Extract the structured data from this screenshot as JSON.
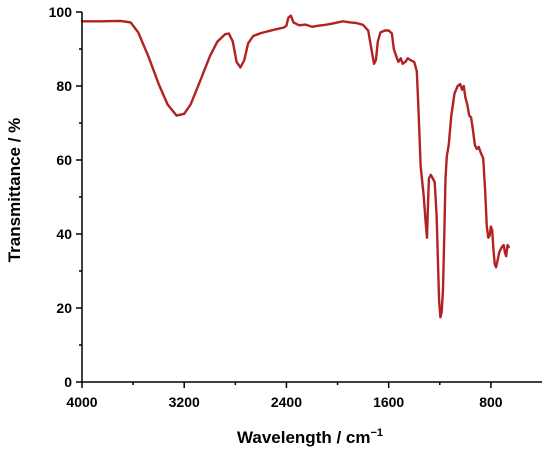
{
  "chart_data": {
    "type": "line",
    "title": "",
    "xlabel": "Wavelength / cm",
    "xlabel_superscript": "−1",
    "ylabel": "Transmittance / %",
    "xlim": [
      4000,
      400
    ],
    "ylim": [
      0,
      100
    ],
    "x_reversed": true,
    "x_ticks": [
      4000,
      3200,
      2400,
      1600,
      800
    ],
    "y_ticks": [
      0,
      20,
      40,
      60,
      80,
      100
    ],
    "grid": false,
    "legend": "none",
    "series": [
      {
        "color": "#b22222",
        "points": [
          [
            4000,
            97.5
          ],
          [
            3850,
            97.5
          ],
          [
            3700,
            97.6
          ],
          [
            3620,
            97.2
          ],
          [
            3560,
            94.5
          ],
          [
            3480,
            88.0
          ],
          [
            3400,
            80.5
          ],
          [
            3330,
            75.0
          ],
          [
            3260,
            72.0
          ],
          [
            3200,
            72.5
          ],
          [
            3150,
            75.0
          ],
          [
            3080,
            81.0
          ],
          [
            3000,
            88.0
          ],
          [
            2940,
            92.0
          ],
          [
            2880,
            94.0
          ],
          [
            2850,
            94.2
          ],
          [
            2820,
            92.0
          ],
          [
            2790,
            86.5
          ],
          [
            2760,
            85.0
          ],
          [
            2730,
            87.0
          ],
          [
            2700,
            91.5
          ],
          [
            2660,
            93.5
          ],
          [
            2600,
            94.3
          ],
          [
            2500,
            95.2
          ],
          [
            2420,
            95.8
          ],
          [
            2400,
            96.3
          ],
          [
            2385,
            98.5
          ],
          [
            2365,
            99.0
          ],
          [
            2345,
            97.2
          ],
          [
            2300,
            96.4
          ],
          [
            2250,
            96.6
          ],
          [
            2200,
            96.0
          ],
          [
            2150,
            96.3
          ],
          [
            2100,
            96.5
          ],
          [
            2050,
            96.8
          ],
          [
            2000,
            97.2
          ],
          [
            1960,
            97.5
          ],
          [
            1900,
            97.2
          ],
          [
            1850,
            97.0
          ],
          [
            1800,
            96.5
          ],
          [
            1760,
            95.0
          ],
          [
            1735,
            90.0
          ],
          [
            1715,
            86.0
          ],
          [
            1700,
            87.0
          ],
          [
            1685,
            92.0
          ],
          [
            1665,
            94.5
          ],
          [
            1630,
            95.0
          ],
          [
            1600,
            95.0
          ],
          [
            1575,
            94.2
          ],
          [
            1560,
            90.0
          ],
          [
            1540,
            88.0
          ],
          [
            1525,
            86.5
          ],
          [
            1505,
            87.5
          ],
          [
            1490,
            86.0
          ],
          [
            1470,
            86.5
          ],
          [
            1450,
            87.5
          ],
          [
            1430,
            87.0
          ],
          [
            1400,
            86.5
          ],
          [
            1380,
            84.0
          ],
          [
            1370,
            76.0
          ],
          [
            1360,
            68.0
          ],
          [
            1350,
            58.5
          ],
          [
            1340,
            55.0
          ],
          [
            1325,
            50.0
          ],
          [
            1310,
            43.0
          ],
          [
            1300,
            39.0
          ],
          [
            1292,
            48.0
          ],
          [
            1285,
            55.0
          ],
          [
            1270,
            56.0
          ],
          [
            1255,
            55.0
          ],
          [
            1240,
            54.0
          ],
          [
            1225,
            45.0
          ],
          [
            1215,
            33.0
          ],
          [
            1205,
            22.0
          ],
          [
            1195,
            17.5
          ],
          [
            1185,
            19.0
          ],
          [
            1175,
            25.0
          ],
          [
            1165,
            40.0
          ],
          [
            1155,
            55.0
          ],
          [
            1145,
            61.0
          ],
          [
            1130,
            64.0
          ],
          [
            1110,
            72.0
          ],
          [
            1085,
            78.0
          ],
          [
            1060,
            80.0
          ],
          [
            1040,
            80.5
          ],
          [
            1025,
            79.0
          ],
          [
            1012,
            80.0
          ],
          [
            1000,
            77.0
          ],
          [
            985,
            75.0
          ],
          [
            970,
            72.0
          ],
          [
            955,
            71.5
          ],
          [
            940,
            68.0
          ],
          [
            925,
            64.0
          ],
          [
            910,
            63.0
          ],
          [
            895,
            63.5
          ],
          [
            880,
            62.0
          ],
          [
            860,
            60.5
          ],
          [
            845,
            52.0
          ],
          [
            832,
            42.0
          ],
          [
            820,
            39.0
          ],
          [
            810,
            39.5
          ],
          [
            800,
            42.0
          ],
          [
            790,
            41.0
          ],
          [
            780,
            36.0
          ],
          [
            770,
            32.0
          ],
          [
            760,
            31.0
          ],
          [
            750,
            32.5
          ],
          [
            735,
            35.0
          ],
          [
            715,
            36.5
          ],
          [
            700,
            37.0
          ],
          [
            690,
            35.0
          ],
          [
            680,
            34.0
          ],
          [
            670,
            37.0
          ],
          [
            660,
            36.5
          ]
        ]
      }
    ]
  }
}
